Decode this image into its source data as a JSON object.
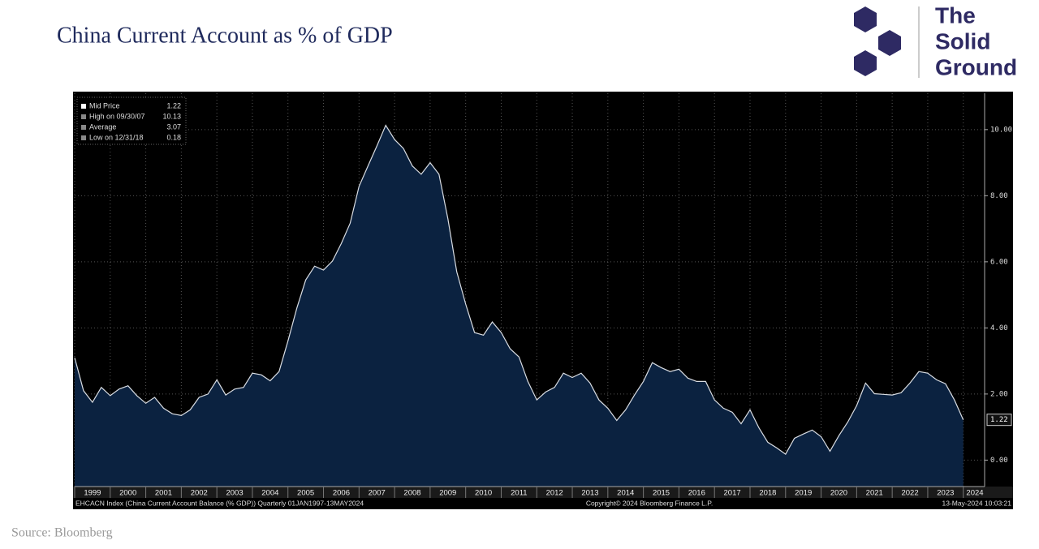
{
  "chart_data": {
    "type": "area",
    "title": "China Current Account as % of GDP",
    "source": "Source: Bloomberg",
    "footer_left": "EHCACN Index (China Current Account Balance (% GDP))  Quarterly 01JAN1997-13MAY2024",
    "footer_center": "Copyright© 2024 Bloomberg Finance L.P.",
    "footer_right": "13-May-2024 10:03:21",
    "legend_items": [
      {
        "label": "Mid Price",
        "value": "1.22"
      },
      {
        "label": "High on 09/30/07",
        "value": "10.13"
      },
      {
        "label": "Average",
        "value": "3.07"
      },
      {
        "label": "Low on 12/31/18",
        "value": "0.18"
      }
    ],
    "logo": [
      "The",
      "Solid",
      "Ground"
    ],
    "color": "#0b2240",
    "line_color": "#d9dde3",
    "grid": true,
    "xlim": [
      1999,
      2024.6
    ],
    "xticks": [
      1999,
      2000,
      2001,
      2002,
      2003,
      2004,
      2005,
      2006,
      2007,
      2008,
      2009,
      2010,
      2011,
      2012,
      2013,
      2014,
      2015,
      2016,
      2017,
      2018,
      2019,
      2020,
      2021,
      2022,
      2023,
      2024
    ],
    "ylim": [
      -0.8,
      11.1
    ],
    "yticks": [
      {
        "value": 0,
        "label": "0.00"
      },
      {
        "value": 2,
        "label": "2.00"
      },
      {
        "value": 4,
        "label": "4.00"
      },
      {
        "value": 6,
        "label": "6.00"
      },
      {
        "value": 8,
        "label": "8.00"
      },
      {
        "value": 10,
        "label": "10.00"
      }
    ],
    "x": [
      1999,
      1999.25,
      1999.5,
      1999.75,
      2000,
      2000.25,
      2000.5,
      2000.75,
      2001,
      2001.25,
      2001.5,
      2001.75,
      2002,
      2002.25,
      2002.5,
      2002.75,
      2003,
      2003.25,
      2003.5,
      2003.75,
      2004,
      2004.25,
      2004.5,
      2004.75,
      2005,
      2005.25,
      2005.5,
      2005.75,
      2006,
      2006.25,
      2006.5,
      2006.75,
      2007,
      2007.25,
      2007.5,
      2007.75,
      2008,
      2008.25,
      2008.5,
      2008.75,
      2009,
      2009.25,
      2009.5,
      2009.75,
      2010,
      2010.25,
      2010.5,
      2010.75,
      2011,
      2011.25,
      2011.5,
      2011.75,
      2012,
      2012.25,
      2012.5,
      2012.75,
      2013,
      2013.25,
      2013.5,
      2013.75,
      2014,
      2014.25,
      2014.5,
      2014.75,
      2015,
      2015.25,
      2015.5,
      2015.75,
      2016,
      2016.25,
      2016.5,
      2016.75,
      2017,
      2017.25,
      2017.5,
      2017.75,
      2018,
      2018.25,
      2018.5,
      2018.75,
      2019,
      2019.25,
      2019.5,
      2019.75,
      2020,
      2020.25,
      2020.5,
      2020.75,
      2021,
      2021.25,
      2021.5,
      2021.75,
      2022,
      2022.25,
      2022.5,
      2022.75,
      2023,
      2023.25,
      2023.5,
      2023.75,
      2024
    ],
    "values": [
      3.1,
      2.1,
      1.75,
      2.2,
      1.95,
      2.15,
      2.25,
      1.95,
      1.72,
      1.9,
      1.57,
      1.4,
      1.35,
      1.52,
      1.9,
      2.0,
      2.43,
      1.97,
      2.15,
      2.2,
      2.63,
      2.58,
      2.4,
      2.68,
      3.6,
      4.6,
      5.45,
      5.87,
      5.75,
      6.02,
      6.55,
      7.17,
      8.28,
      8.9,
      9.5,
      10.13,
      9.7,
      9.43,
      8.9,
      8.65,
      9.0,
      8.65,
      7.3,
      5.7,
      4.72,
      3.86,
      3.78,
      4.18,
      3.86,
      3.37,
      3.12,
      2.38,
      1.82,
      2.06,
      2.2,
      2.63,
      2.5,
      2.63,
      2.33,
      1.82,
      1.57,
      1.2,
      1.52,
      1.97,
      2.38,
      2.95,
      2.8,
      2.68,
      2.75,
      2.48,
      2.38,
      2.38,
      1.82,
      1.57,
      1.45,
      1.1,
      1.52,
      0.98,
      0.54,
      0.37,
      0.18,
      0.66,
      0.79,
      0.91,
      0.71,
      0.27,
      0.74,
      1.15,
      1.65,
      2.33,
      2.01,
      1.99,
      1.97,
      2.04,
      2.33,
      2.68,
      2.63,
      2.43,
      2.31,
      1.82,
      1.22
    ]
  }
}
